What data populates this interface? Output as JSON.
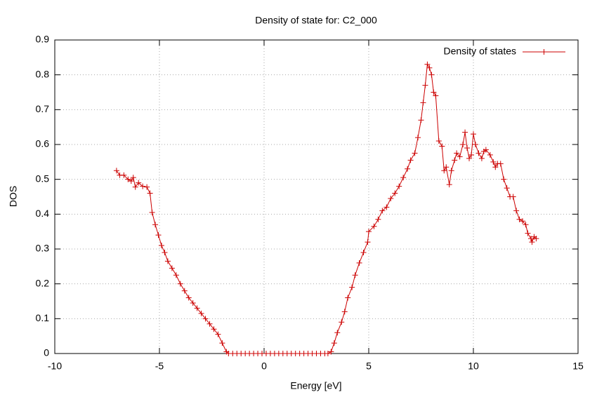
{
  "chart_data": {
    "type": "line",
    "title": "Density of state for: C2_000",
    "x_label": "Energy [eV]",
    "y_label": "DOS",
    "x": [
      -7.05,
      -6.9,
      -6.7,
      -6.5,
      -6.35,
      -6.25,
      -6.15,
      -6.0,
      -5.8,
      -5.6,
      -5.45,
      -5.35,
      -5.2,
      -5.05,
      -4.9,
      -4.75,
      -4.6,
      -4.4,
      -4.2,
      -4.0,
      -3.8,
      -3.6,
      -3.4,
      -3.2,
      -3.0,
      -2.8,
      -2.6,
      -2.4,
      -2.2,
      -2.0,
      -1.8,
      -1.7,
      -1.5,
      -1.3,
      -1.1,
      -0.9,
      -0.7,
      -0.5,
      -0.3,
      -0.1,
      0.1,
      0.3,
      0.5,
      0.7,
      0.9,
      1.1,
      1.3,
      1.5,
      1.7,
      1.9,
      2.1,
      2.3,
      2.5,
      2.7,
      2.9,
      3.05,
      3.2,
      3.35,
      3.5,
      3.7,
      3.85,
      4.0,
      4.2,
      4.35,
      4.55,
      4.75,
      4.95,
      5.0,
      5.25,
      5.45,
      5.65,
      5.85,
      6.05,
      6.25,
      6.45,
      6.65,
      6.85,
      7.0,
      7.2,
      7.35,
      7.5,
      7.6,
      7.7,
      7.8,
      7.9,
      8.0,
      8.1,
      8.2,
      8.35,
      8.5,
      8.6,
      8.7,
      8.85,
      8.95,
      9.1,
      9.2,
      9.35,
      9.5,
      9.6,
      9.7,
      9.8,
      9.9,
      10.0,
      10.1,
      10.25,
      10.4,
      10.5,
      10.6,
      10.8,
      10.95,
      11.05,
      11.15,
      11.3,
      11.45,
      11.6,
      11.75,
      11.9,
      12.05,
      12.2,
      12.35,
      12.5,
      12.6,
      12.75,
      12.8,
      12.9,
      13.0
    ],
    "series": [
      {
        "name": "Density of states",
        "color": "#cc0000",
        "values": [
          0.525,
          0.512,
          0.512,
          0.5,
          0.495,
          0.505,
          0.478,
          0.49,
          0.48,
          0.478,
          0.46,
          0.405,
          0.37,
          0.34,
          0.31,
          0.29,
          0.265,
          0.245,
          0.225,
          0.2,
          0.18,
          0.16,
          0.145,
          0.13,
          0.115,
          0.1,
          0.085,
          0.07,
          0.055,
          0.03,
          0.005,
          0,
          0,
          0,
          0,
          0,
          0,
          0,
          0,
          0,
          0,
          0,
          0,
          0,
          0,
          0,
          0,
          0,
          0,
          0,
          0,
          0,
          0,
          0,
          0,
          0,
          0.005,
          0.03,
          0.06,
          0.09,
          0.12,
          0.16,
          0.19,
          0.225,
          0.26,
          0.29,
          0.32,
          0.35,
          0.365,
          0.385,
          0.41,
          0.42,
          0.445,
          0.46,
          0.48,
          0.505,
          0.53,
          0.555,
          0.575,
          0.62,
          0.67,
          0.72,
          0.77,
          0.83,
          0.82,
          0.8,
          0.75,
          0.74,
          0.61,
          0.595,
          0.525,
          0.535,
          0.485,
          0.525,
          0.555,
          0.575,
          0.565,
          0.6,
          0.635,
          0.59,
          0.56,
          0.57,
          0.63,
          0.6,
          0.575,
          0.56,
          0.58,
          0.585,
          0.57,
          0.55,
          0.535,
          0.545,
          0.545,
          0.5,
          0.475,
          0.45,
          0.45,
          0.41,
          0.385,
          0.38,
          0.37,
          0.345,
          0.33,
          0.32,
          0.335,
          0.33
        ]
      }
    ],
    "xlim": [
      -10,
      15
    ],
    "ylim": [
      0,
      0.9
    ],
    "xticks": [
      -10,
      -5,
      0,
      5,
      10,
      15
    ],
    "yticks": [
      0,
      0.1,
      0.2,
      0.3,
      0.4,
      0.5,
      0.6,
      0.7,
      0.8,
      0.9
    ],
    "grid": true,
    "legend": "top right"
  }
}
